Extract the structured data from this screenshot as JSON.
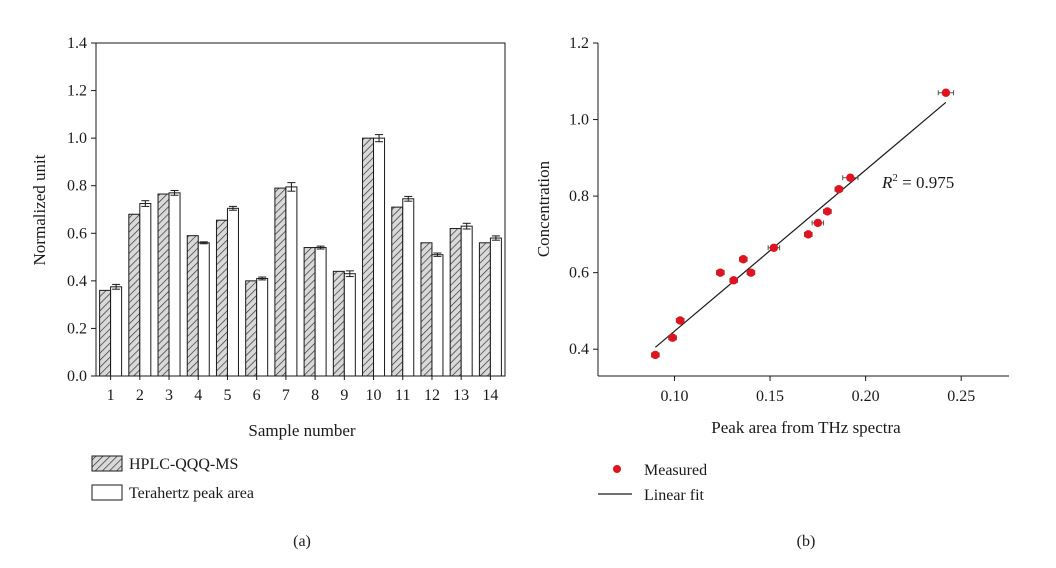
{
  "chart_data": [
    {
      "type": "bar",
      "panel_label": "(a)",
      "xlabel": "Sample number",
      "ylabel": "Normalized unit",
      "ylim": [
        0.0,
        1.4
      ],
      "yticks": [
        "0.0",
        "0.2",
        "0.4",
        "0.6",
        "0.8",
        "1.0",
        "1.2",
        "1.4"
      ],
      "categories": [
        "1",
        "2",
        "3",
        "4",
        "5",
        "6",
        "7",
        "8",
        "9",
        "10",
        "11",
        "12",
        "13",
        "14"
      ],
      "series": [
        {
          "name": "HPLC-QQQ-MS",
          "pattern": "hatched",
          "values": [
            0.36,
            0.68,
            0.765,
            0.59,
            0.655,
            0.4,
            0.79,
            0.54,
            0.44,
            1.0,
            0.71,
            0.56,
            0.62,
            0.56
          ],
          "errors": [
            0,
            0,
            0,
            0,
            0,
            0,
            0,
            0,
            0,
            0,
            0,
            0,
            0,
            0
          ]
        },
        {
          "name": "Terahertz peak area",
          "pattern": "open",
          "values": [
            0.375,
            0.725,
            0.77,
            0.56,
            0.705,
            0.41,
            0.795,
            0.54,
            0.43,
            1.0,
            0.745,
            0.51,
            0.63,
            0.58
          ],
          "errors": [
            0.01,
            0.012,
            0.01,
            0.004,
            0.008,
            0.006,
            0.018,
            0.006,
            0.012,
            0.015,
            0.01,
            0.007,
            0.012,
            0.009
          ]
        }
      ],
      "legend": [
        "HPLC-QQQ-MS",
        "Terahertz peak area"
      ],
      "legend_position": "below"
    },
    {
      "type": "scatter",
      "panel_label": "(b)",
      "xlabel": "Peak area from THz spectra",
      "ylabel": "Concentration",
      "xlim": [
        0.06,
        0.275
      ],
      "ylim": [
        0.33,
        1.2
      ],
      "xticks": [
        "0.10",
        "0.15",
        "0.20",
        "0.25"
      ],
      "yticks": [
        "0.4",
        "0.6",
        "0.8",
        "1.0",
        "1.2"
      ],
      "points": [
        {
          "x": 0.09,
          "y": 0.385,
          "xerr": 0.002
        },
        {
          "x": 0.099,
          "y": 0.43,
          "xerr": 0.002
        },
        {
          "x": 0.103,
          "y": 0.475,
          "xerr": 0.002
        },
        {
          "x": 0.124,
          "y": 0.6,
          "xerr": 0.002
        },
        {
          "x": 0.131,
          "y": 0.58,
          "xerr": 0.002
        },
        {
          "x": 0.136,
          "y": 0.635,
          "xerr": 0.002
        },
        {
          "x": 0.14,
          "y": 0.6,
          "xerr": 0.002
        },
        {
          "x": 0.152,
          "y": 0.665,
          "xerr": 0.003
        },
        {
          "x": 0.17,
          "y": 0.7,
          "xerr": 0.002
        },
        {
          "x": 0.175,
          "y": 0.73,
          "xerr": 0.003
        },
        {
          "x": 0.18,
          "y": 0.76,
          "xerr": 0.002
        },
        {
          "x": 0.186,
          "y": 0.818,
          "xerr": 0.002
        },
        {
          "x": 0.192,
          "y": 0.848,
          "xerr": 0.004
        },
        {
          "x": 0.242,
          "y": 1.07,
          "xerr": 0.004
        }
      ],
      "fit": {
        "x": [
          0.09,
          0.242
        ],
        "y": [
          0.405,
          1.045
        ]
      },
      "annotation": {
        "prefix": "R",
        "superscript": "2",
        "suffix": " = 0.975"
      },
      "legend": [
        "Measured",
        "Linear fit"
      ],
      "legend_position": "below",
      "marker_color": "#e0141e"
    }
  ]
}
